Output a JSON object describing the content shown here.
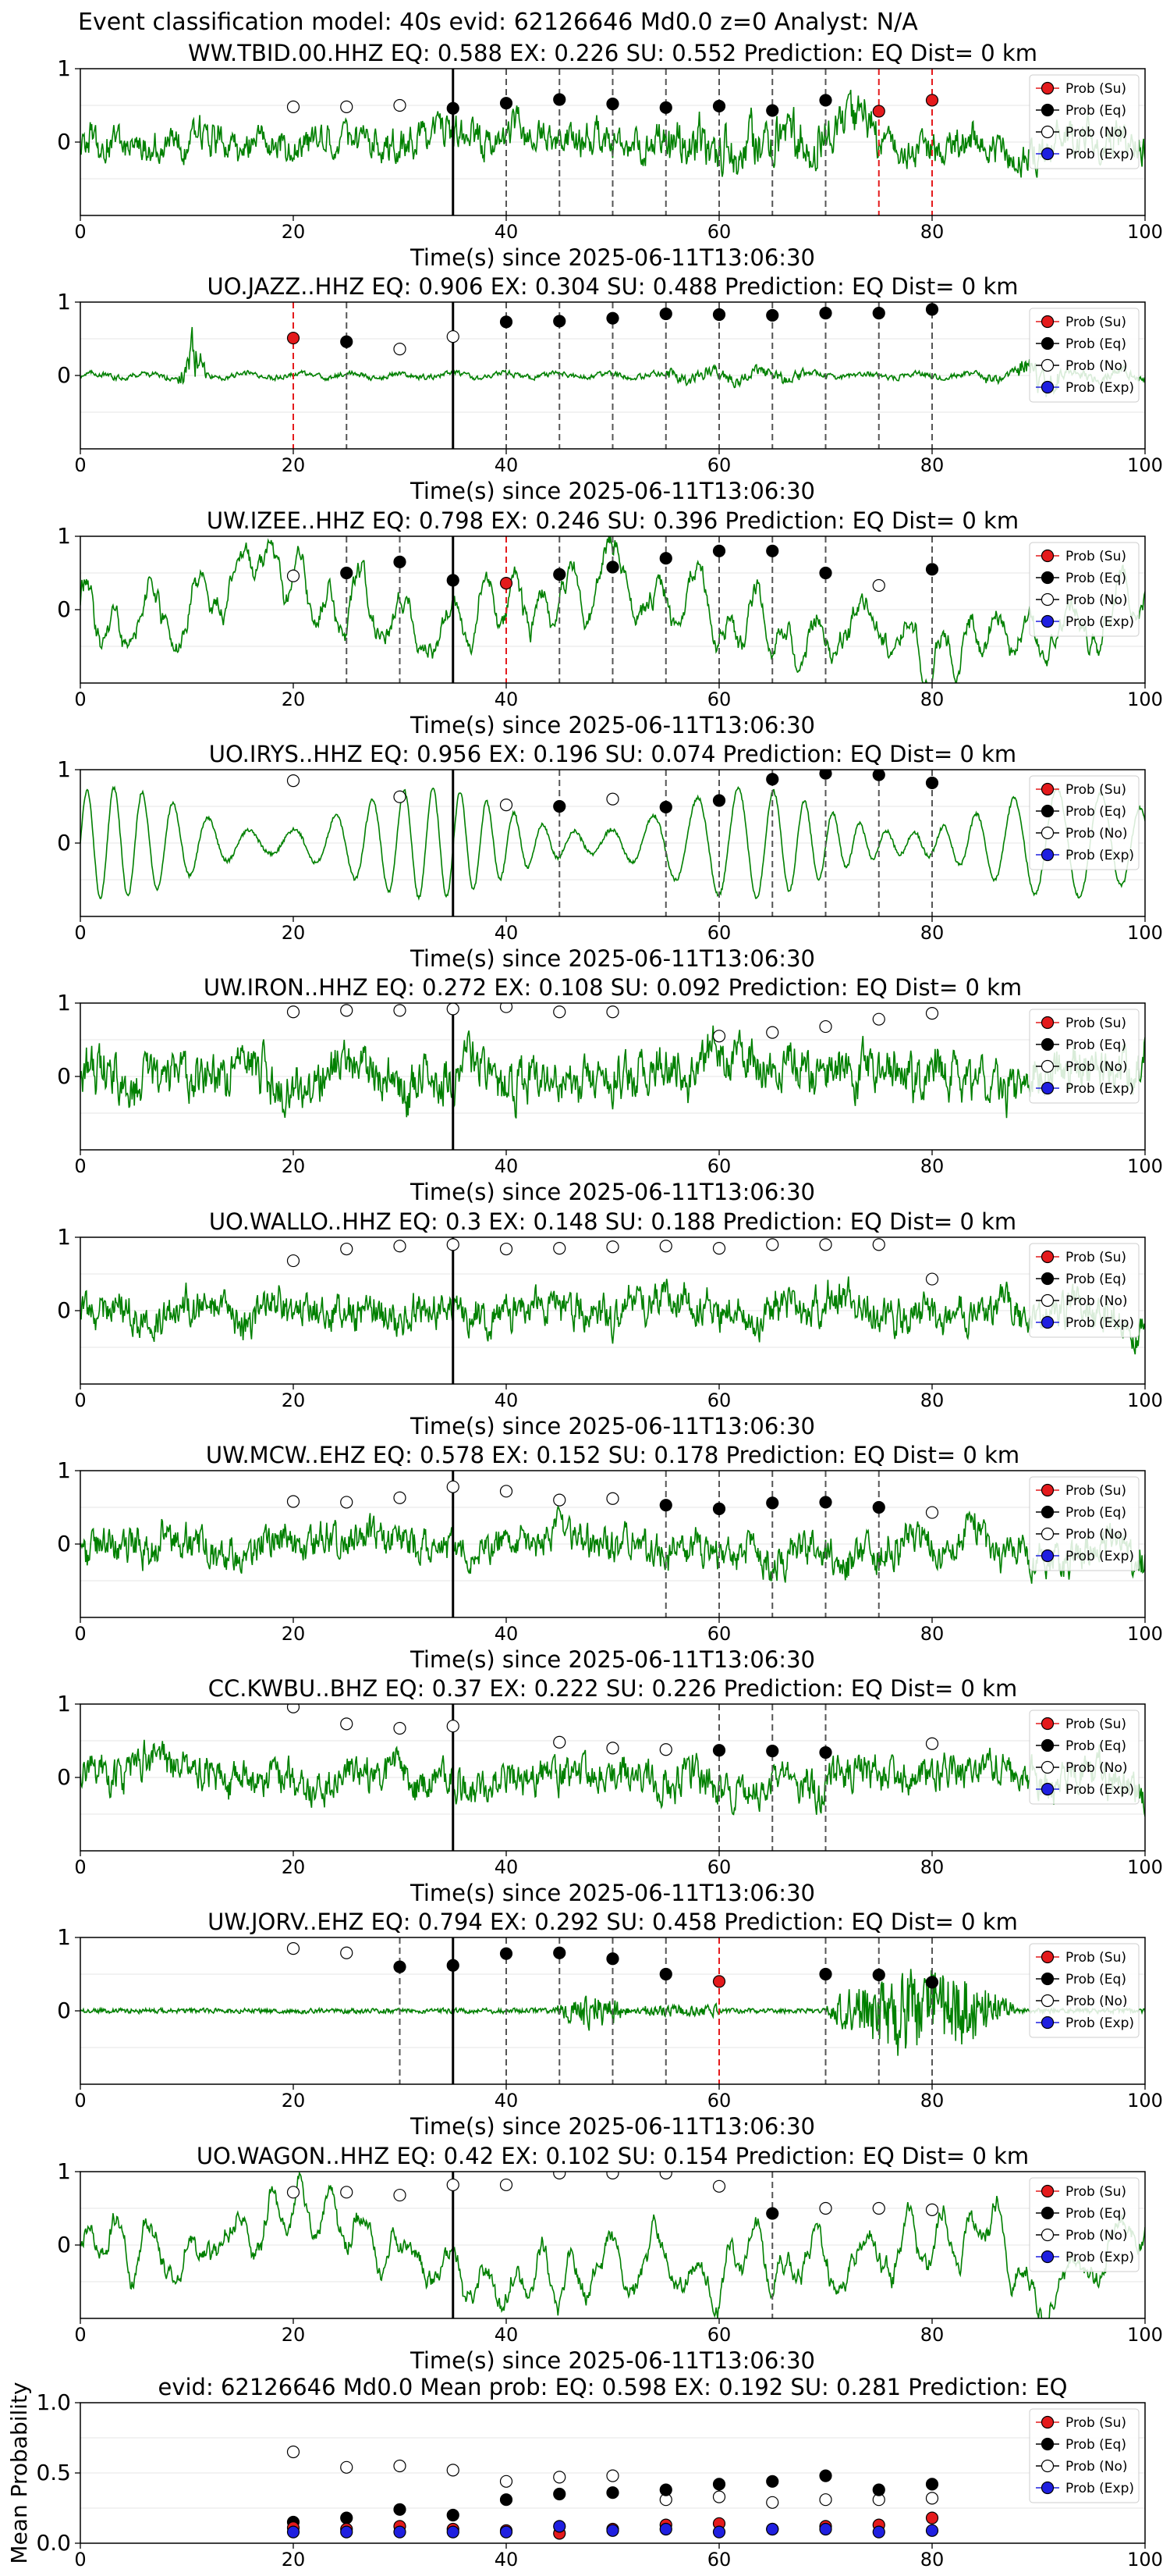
{
  "figure_title": "Event classification model: 40s evid: 62126646 Md0.0 z=0 Analyst: N/A",
  "legend_labels": [
    "Prob (Su)",
    "Prob (Eq)",
    "Prob (No)",
    "Prob (Exp)"
  ],
  "colors": {
    "trace": "#008000",
    "su": "#e41a1c",
    "eq": "#000000",
    "no": "#ffffff",
    "exp": "#1f1fe0",
    "arrival": "#000000",
    "eq_line": "#555555",
    "su_line": "#e41a1c"
  },
  "chart_data": [
    {
      "type": "line",
      "title": "WW.TBID.00.HHZ   EQ: 0.588  EX: 0.226  SU: 0.552   Prediction: EQ    Dist= 0 km",
      "xlabel": "Time(s) since 2025-06-11T13:06:30",
      "xlim": [
        0,
        100
      ],
      "ylim": [
        -1,
        1
      ],
      "xticks": [
        "0",
        "20",
        "40",
        "60",
        "80",
        "100"
      ],
      "yticks": [
        "1",
        "0"
      ],
      "arrival": 35,
      "trace_style": "noise",
      "trace_amp": 0.55,
      "eq": [
        [
          35,
          0.46
        ],
        [
          40,
          0.53
        ],
        [
          45,
          0.58
        ],
        [
          50,
          0.52
        ],
        [
          55,
          0.47
        ],
        [
          60,
          0.49
        ],
        [
          65,
          0.43
        ],
        [
          70,
          0.57
        ]
      ],
      "su": [
        [
          75,
          0.42
        ],
        [
          80,
          0.57
        ]
      ],
      "no": [
        [
          20,
          0.48
        ],
        [
          25,
          0.48
        ],
        [
          30,
          0.5
        ]
      ],
      "exp": []
    },
    {
      "type": "line",
      "title": "UO.JAZZ..HHZ   EQ: 0.906  EX: 0.304  SU: 0.488   Prediction: EQ    Dist= 0 km",
      "xlabel": "Time(s) since 2025-06-11T13:06:30",
      "xlim": [
        0,
        100
      ],
      "ylim": [
        -1,
        1
      ],
      "xticks": [
        "0",
        "20",
        "40",
        "60",
        "80",
        "100"
      ],
      "yticks": [
        "1",
        "0"
      ],
      "arrival": 35,
      "trace_style": "quiet",
      "trace_amp": 0.25,
      "eq": [
        [
          25,
          0.46
        ],
        [
          40,
          0.73
        ],
        [
          45,
          0.74
        ],
        [
          50,
          0.78
        ],
        [
          55,
          0.84
        ],
        [
          60,
          0.83
        ],
        [
          65,
          0.82
        ],
        [
          70,
          0.85
        ],
        [
          75,
          0.85
        ],
        [
          80,
          0.9
        ]
      ],
      "su": [
        [
          20,
          0.51
        ]
      ],
      "no": [
        [
          30,
          0.36
        ],
        [
          35,
          0.53
        ]
      ],
      "exp": []
    },
    {
      "type": "line",
      "title": "UW.IZEE..HHZ   EQ: 0.798  EX: 0.246  SU: 0.396   Prediction: EQ    Dist= 0 km",
      "xlabel": "Time(s) since 2025-06-11T13:06:30",
      "xlim": [
        0,
        100
      ],
      "ylim": [
        -1,
        1
      ],
      "xticks": [
        "0",
        "20",
        "40",
        "60",
        "80",
        "100"
      ],
      "yticks": [
        "1",
        "0"
      ],
      "arrival": 35,
      "trace_style": "wavy",
      "trace_amp": 0.7,
      "eq": [
        [
          25,
          0.5
        ],
        [
          30,
          0.65
        ],
        [
          35,
          0.4
        ],
        [
          45,
          0.48
        ],
        [
          50,
          0.58
        ],
        [
          55,
          0.7
        ],
        [
          60,
          0.8
        ],
        [
          65,
          0.8
        ],
        [
          70,
          0.5
        ],
        [
          80,
          0.55
        ]
      ],
      "su": [
        [
          40,
          0.36
        ]
      ],
      "no": [
        [
          20,
          0.46
        ],
        [
          75,
          0.33
        ]
      ],
      "exp": []
    },
    {
      "type": "line",
      "title": "UO.IRYS..HHZ   EQ: 0.956  EX: 0.196  SU: 0.074   Prediction: EQ    Dist= 0 km",
      "xlabel": "Time(s) since 2025-06-11T13:06:30",
      "xlim": [
        0,
        100
      ],
      "ylim": [
        -1,
        1
      ],
      "xticks": [
        "0",
        "20",
        "40",
        "60",
        "80",
        "100"
      ],
      "yticks": [
        "1",
        "0"
      ],
      "arrival": 35,
      "trace_style": "sine",
      "trace_amp": 0.75,
      "eq": [
        [
          45,
          0.5
        ],
        [
          55,
          0.49
        ],
        [
          60,
          0.58
        ],
        [
          65,
          0.87
        ],
        [
          70,
          0.95
        ],
        [
          75,
          0.93
        ],
        [
          80,
          0.82
        ]
      ],
      "su": [],
      "no": [
        [
          20,
          0.85
        ],
        [
          30,
          0.63
        ],
        [
          40,
          0.52
        ],
        [
          50,
          0.6
        ]
      ],
      "exp": []
    },
    {
      "type": "line",
      "title": "UW.IRON..HHZ   EQ: 0.272  EX: 0.108  SU: 0.092   Prediction: EQ    Dist= 0 km",
      "xlabel": "Time(s) since 2025-06-11T13:06:30",
      "xlim": [
        0,
        100
      ],
      "ylim": [
        -1,
        1
      ],
      "xticks": [
        "0",
        "20",
        "40",
        "60",
        "80",
        "100"
      ],
      "yticks": [
        "1",
        "0"
      ],
      "arrival": 35,
      "trace_style": "noisy",
      "trace_amp": 0.75,
      "eq": [],
      "su": [],
      "no": [
        [
          20,
          0.88
        ],
        [
          25,
          0.9
        ],
        [
          30,
          0.9
        ],
        [
          35,
          0.92
        ],
        [
          40,
          0.95
        ],
        [
          45,
          0.88
        ],
        [
          50,
          0.88
        ],
        [
          60,
          0.55
        ],
        [
          65,
          0.6
        ],
        [
          70,
          0.68
        ],
        [
          75,
          0.78
        ],
        [
          80,
          0.86
        ]
      ],
      "exp": []
    },
    {
      "type": "line",
      "title": "UO.WALLO..HHZ   EQ: 0.3  EX: 0.148  SU: 0.188   Prediction: EQ    Dist= 0 km",
      "xlabel": "Time(s) since 2025-06-11T13:06:30",
      "xlim": [
        0,
        100
      ],
      "ylim": [
        -1,
        1
      ],
      "xticks": [
        "0",
        "20",
        "40",
        "60",
        "80",
        "100"
      ],
      "yticks": [
        "1",
        "0"
      ],
      "arrival": 35,
      "trace_style": "noisy",
      "trace_amp": 0.6,
      "eq": [],
      "su": [],
      "no": [
        [
          20,
          0.68
        ],
        [
          25,
          0.84
        ],
        [
          30,
          0.88
        ],
        [
          35,
          0.9
        ],
        [
          40,
          0.84
        ],
        [
          45,
          0.85
        ],
        [
          50,
          0.87
        ],
        [
          55,
          0.88
        ],
        [
          60,
          0.85
        ],
        [
          65,
          0.9
        ],
        [
          70,
          0.9
        ],
        [
          75,
          0.9
        ],
        [
          80,
          0.43
        ]
      ],
      "exp": []
    },
    {
      "type": "line",
      "title": "UW.MCW..EHZ   EQ: 0.578  EX: 0.152  SU: 0.178   Prediction: EQ    Dist= 0 km",
      "xlabel": "Time(s) since 2025-06-11T13:06:30",
      "xlim": [
        0,
        100
      ],
      "ylim": [
        -1,
        1
      ],
      "xticks": [
        "0",
        "20",
        "40",
        "60",
        "80",
        "100"
      ],
      "yticks": [
        "1",
        "0"
      ],
      "arrival": 35,
      "trace_style": "noisy",
      "trace_amp": 0.6,
      "eq": [
        [
          55,
          0.53
        ],
        [
          60,
          0.48
        ],
        [
          65,
          0.56
        ],
        [
          70,
          0.57
        ],
        [
          75,
          0.5
        ]
      ],
      "su": [],
      "no": [
        [
          20,
          0.58
        ],
        [
          25,
          0.57
        ],
        [
          30,
          0.63
        ],
        [
          35,
          0.78
        ],
        [
          40,
          0.72
        ],
        [
          45,
          0.6
        ],
        [
          50,
          0.62
        ],
        [
          80,
          0.43
        ]
      ],
      "exp": []
    },
    {
      "type": "line",
      "title": "CC.KWBU..BHZ   EQ: 0.37  EX: 0.222  SU: 0.226   Prediction: EQ    Dist= 0 km",
      "xlabel": "Time(s) since 2025-06-11T13:06:30",
      "xlim": [
        0,
        100
      ],
      "ylim": [
        -1,
        1
      ],
      "xticks": [
        "0",
        "20",
        "40",
        "60",
        "80",
        "100"
      ],
      "yticks": [
        "1",
        "0"
      ],
      "arrival": 35,
      "trace_style": "noisy",
      "trace_amp": 0.6,
      "eq": [
        [
          60,
          0.37
        ],
        [
          65,
          0.36
        ],
        [
          70,
          0.34
        ]
      ],
      "su": [],
      "no": [
        [
          20,
          0.96
        ],
        [
          25,
          0.73
        ],
        [
          30,
          0.67
        ],
        [
          35,
          0.7
        ],
        [
          45,
          0.48
        ],
        [
          50,
          0.4
        ],
        [
          55,
          0.38
        ],
        [
          80,
          0.46
        ]
      ],
      "exp": []
    },
    {
      "type": "line",
      "title": "UW.JORV..EHZ   EQ: 0.794  EX: 0.292  SU: 0.458   Prediction: EQ    Dist= 0 km",
      "xlabel": "Time(s) since 2025-06-11T13:06:30",
      "xlim": [
        0,
        100
      ],
      "ylim": [
        -1,
        1
      ],
      "xticks": [
        "0",
        "20",
        "40",
        "60",
        "80",
        "100"
      ],
      "yticks": [
        "1",
        "0"
      ],
      "arrival": 35,
      "trace_style": "burst",
      "trace_amp": 0.9,
      "eq": [
        [
          30,
          0.6
        ],
        [
          35,
          0.62
        ],
        [
          40,
          0.78
        ],
        [
          45,
          0.79
        ],
        [
          50,
          0.71
        ],
        [
          55,
          0.5
        ],
        [
          70,
          0.5
        ],
        [
          75,
          0.49
        ],
        [
          80,
          0.39
        ]
      ],
      "su": [
        [
          60,
          0.4
        ]
      ],
      "no": [
        [
          20,
          0.85
        ],
        [
          25,
          0.79
        ]
      ],
      "exp": []
    },
    {
      "type": "line",
      "title": "UO.WAGON..HHZ   EQ: 0.42  EX: 0.102  SU: 0.154   Prediction: EQ    Dist= 0 km",
      "xlabel": "Time(s) since 2025-06-11T13:06:30",
      "xlim": [
        0,
        100
      ],
      "ylim": [
        -1,
        1
      ],
      "xticks": [
        "0",
        "20",
        "40",
        "60",
        "80",
        "100"
      ],
      "yticks": [
        "1",
        "0"
      ],
      "arrival": 35,
      "trace_style": "wavy",
      "trace_amp": 0.7,
      "eq": [
        [
          65,
          0.43
        ]
      ],
      "su": [],
      "no": [
        [
          20,
          0.72
        ],
        [
          25,
          0.72
        ],
        [
          30,
          0.68
        ],
        [
          35,
          0.82
        ],
        [
          40,
          0.82
        ],
        [
          45,
          0.98
        ],
        [
          50,
          0.98
        ],
        [
          55,
          0.98
        ],
        [
          60,
          0.8
        ],
        [
          70,
          0.5
        ],
        [
          75,
          0.5
        ],
        [
          80,
          0.48
        ]
      ],
      "exp": []
    },
    {
      "type": "scatter",
      "title": "evid: 62126646  Md0.0   Mean prob:   EQ: 0.598  EX: 0.192  SU: 0.281   Prediction: EQ",
      "ylabel": "Mean Probability",
      "xlim": [
        0,
        100
      ],
      "ylim": [
        0,
        1
      ],
      "xticks": [
        "0",
        "20",
        "40",
        "60",
        "80",
        "100"
      ],
      "yticks": [
        "1.0",
        "0.5",
        "0.0"
      ],
      "no": [
        [
          20,
          0.65
        ],
        [
          25,
          0.54
        ],
        [
          30,
          0.55
        ],
        [
          35,
          0.52
        ],
        [
          40,
          0.44
        ],
        [
          45,
          0.47
        ],
        [
          50,
          0.48
        ],
        [
          55,
          0.31
        ],
        [
          60,
          0.33
        ],
        [
          65,
          0.29
        ],
        [
          70,
          0.31
        ],
        [
          75,
          0.31
        ],
        [
          80,
          0.32
        ]
      ],
      "eq": [
        [
          20,
          0.15
        ],
        [
          25,
          0.18
        ],
        [
          30,
          0.24
        ],
        [
          35,
          0.2
        ],
        [
          40,
          0.31
        ],
        [
          45,
          0.35
        ],
        [
          50,
          0.36
        ],
        [
          55,
          0.38
        ],
        [
          60,
          0.42
        ],
        [
          65,
          0.44
        ],
        [
          70,
          0.48
        ],
        [
          75,
          0.38
        ],
        [
          80,
          0.42
        ]
      ],
      "su": [
        [
          20,
          0.11
        ],
        [
          25,
          0.1
        ],
        [
          30,
          0.12
        ],
        [
          35,
          0.1
        ],
        [
          40,
          0.09
        ],
        [
          45,
          0.07
        ],
        [
          50,
          0.1
        ],
        [
          55,
          0.13
        ],
        [
          60,
          0.14
        ],
        [
          65,
          0.1
        ],
        [
          70,
          0.12
        ],
        [
          75,
          0.13
        ],
        [
          80,
          0.18
        ]
      ],
      "exp": [
        [
          20,
          0.08
        ],
        [
          25,
          0.08
        ],
        [
          30,
          0.08
        ],
        [
          35,
          0.08
        ],
        [
          40,
          0.08
        ],
        [
          45,
          0.12
        ],
        [
          50,
          0.09
        ],
        [
          55,
          0.1
        ],
        [
          60,
          0.08
        ],
        [
          65,
          0.1
        ],
        [
          70,
          0.1
        ],
        [
          75,
          0.08
        ],
        [
          80,
          0.09
        ]
      ]
    }
  ]
}
